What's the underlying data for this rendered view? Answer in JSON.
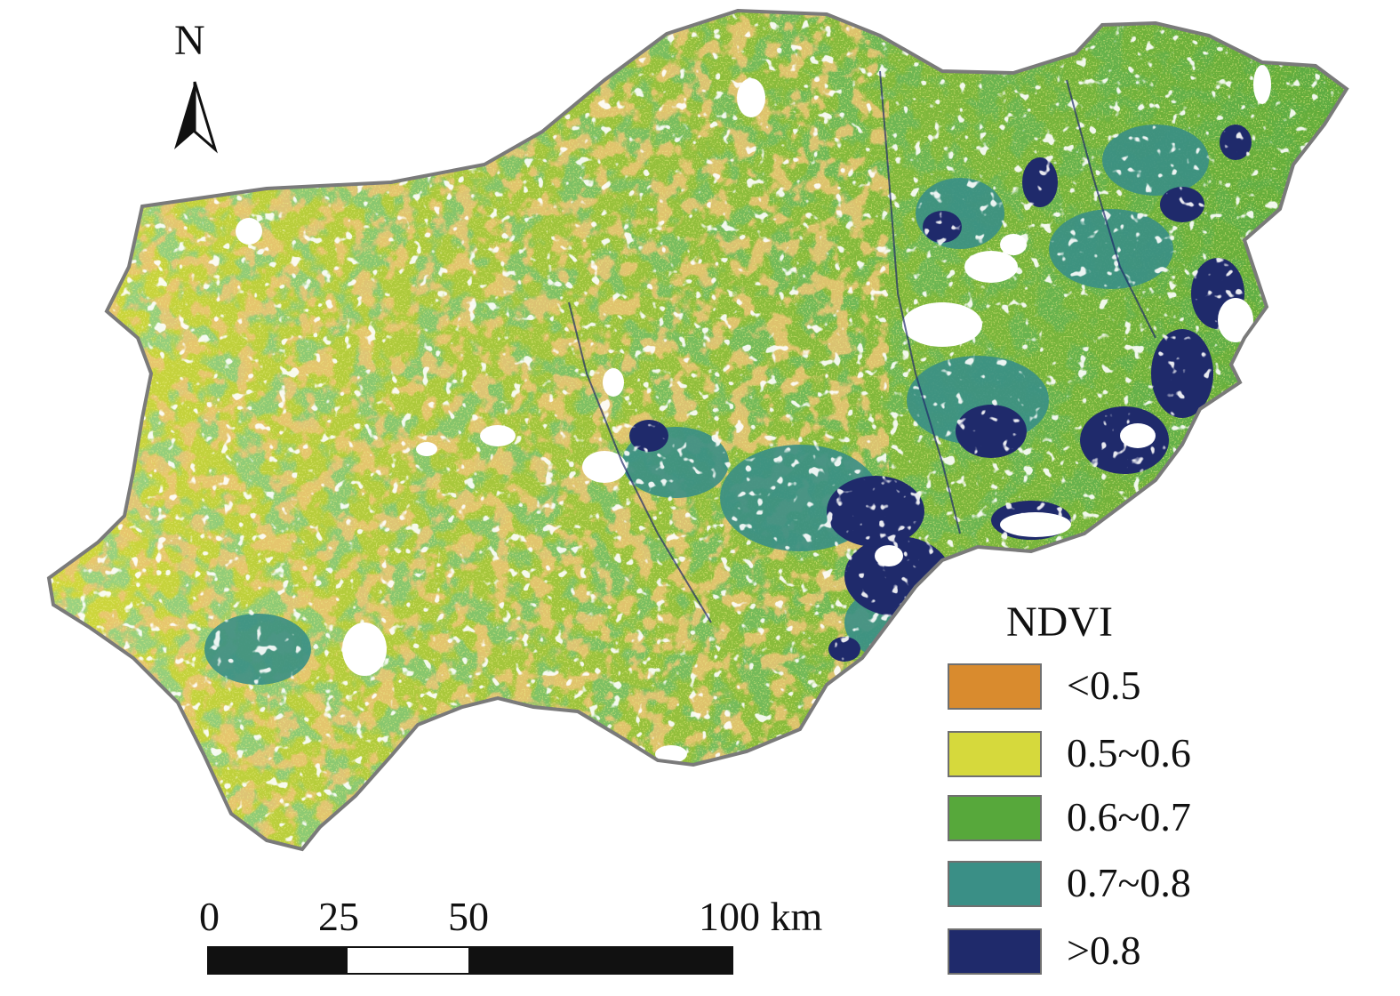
{
  "north": {
    "label": "N",
    "icon": "north-arrow-icon"
  },
  "legend": {
    "title": "NDVI",
    "items": [
      {
        "label": "<0.5",
        "color": "#d98b2e"
      },
      {
        "label": "0.5~0.6",
        "color": "#d6d93c"
      },
      {
        "label": "0.6~0.7",
        "color": "#57a83b"
      },
      {
        "label": "0.7~0.8",
        "color": "#3a8f86"
      },
      {
        "label": ">0.8",
        "color": "#1f2a6b"
      }
    ]
  },
  "scale_bar": {
    "ticks": [
      "0",
      "25",
      "50",
      "100 km"
    ],
    "segment_colors": [
      "#111111",
      "#ffffff",
      "#111111"
    ]
  }
}
